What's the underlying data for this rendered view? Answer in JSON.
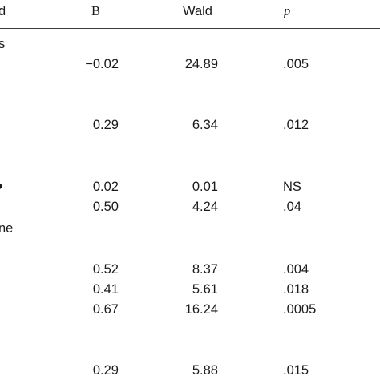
{
  "table": {
    "header": {
      "col0": "d",
      "col1": "B",
      "col2": "Wald",
      "col3": "p"
    },
    "row_labels": {
      "r1": "s",
      "r2": "",
      "r3": "ne"
    },
    "rows": [
      {
        "b": "−0.02",
        "wald": "24.89",
        "p": ".005"
      },
      {
        "b": "0.29",
        "wald": "6.34",
        "p": ".012"
      },
      {
        "b": "0.02",
        "wald": "0.01",
        "p": "NS"
      },
      {
        "b": "0.50",
        "wald": "4.24",
        "p": ".04"
      },
      {
        "b": "0.52",
        "wald": "8.37",
        "p": ".004"
      },
      {
        "b": "0.41",
        "wald": "5.61",
        "p": ".018"
      },
      {
        "b": "0.67",
        "wald": "16.24",
        "p": ".0005"
      },
      {
        "b": "0.29",
        "wald": "5.88",
        "p": ".015"
      }
    ]
  }
}
